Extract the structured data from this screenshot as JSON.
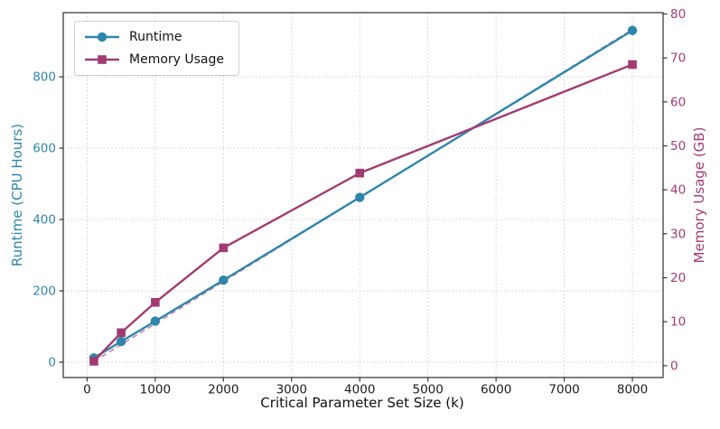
{
  "chart_data": {
    "type": "line",
    "title": "",
    "xlabel": "Critical Parameter Set Size (k)",
    "ylabel_left": "Runtime (CPU Hours)",
    "ylabel_right": "Memory Usage (GB)",
    "x": [
      100,
      500,
      1000,
      2000,
      4000,
      8000
    ],
    "series": [
      {
        "name": "Runtime",
        "axis": "left",
        "marker": "circle",
        "style": "solid",
        "color": "#2E86AB",
        "values": [
          12,
          58,
          115,
          230,
          462,
          930
        ]
      },
      {
        "name": "Memory Usage",
        "axis": "right",
        "marker": "square",
        "style": "solid",
        "color": "#A23B72",
        "values": [
          1.0,
          7.5,
          14.4,
          26.8,
          43.8,
          68.5
        ]
      }
    ],
    "reference_line": {
      "name": "linear-scaling-reference",
      "axis": "right",
      "style": "dashed",
      "color": "#A23B72",
      "x": [
        100,
        8000
      ],
      "values": [
        0.96,
        76.5
      ]
    },
    "x_ticks": [
      0,
      1000,
      2000,
      3000,
      4000,
      5000,
      6000,
      7000,
      8000
    ],
    "y_ticks_left": [
      0,
      200,
      400,
      600,
      800
    ],
    "y_ticks_right": [
      0,
      10,
      20,
      30,
      40,
      50,
      60,
      70,
      80
    ],
    "xlim": [
      -350,
      8450
    ],
    "ylim_left": [
      -43,
      980
    ],
    "ylim_right": [
      -2.7,
      80.3
    ],
    "grid": true,
    "legend_position": "upper-left",
    "colors": {
      "runtime": "#2E86AB",
      "memory": "#A23B72",
      "grid": "#c9c9c9",
      "spine": "#4a4a4a",
      "tick_text_x": "#1a1a1a"
    }
  }
}
